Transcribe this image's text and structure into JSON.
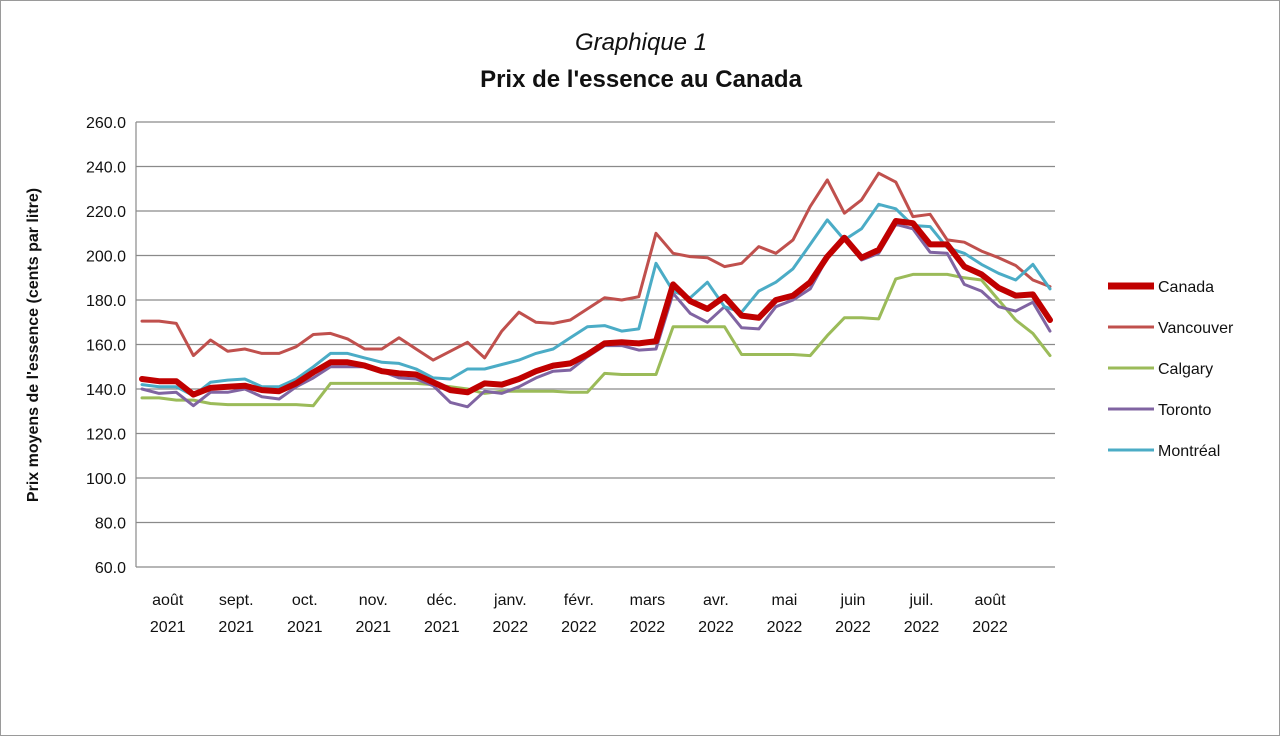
{
  "chart_data": {
    "type": "line",
    "title": "Prix de l'essence au Canada",
    "subtitle": "Graphique 1",
    "xlabel": "",
    "ylabel": "Prix moyens de l'essence (cents par litre)",
    "ylim": [
      60,
      260
    ],
    "yticks": [
      "260.0",
      "240.0",
      "220.0",
      "200.0",
      "180.0",
      "160.0",
      "140.0",
      "120.0",
      "100.0",
      "80.0",
      "60.0"
    ],
    "xtick_labels": [
      {
        "month": "août",
        "year": "2021"
      },
      {
        "month": "sept.",
        "year": "2021"
      },
      {
        "month": "oct.",
        "year": "2021"
      },
      {
        "month": "nov.",
        "year": "2021"
      },
      {
        "month": "déc.",
        "year": "2021"
      },
      {
        "month": "janv.",
        "year": "2022"
      },
      {
        "month": "févr.",
        "year": "2022"
      },
      {
        "month": "mars",
        "year": "2022"
      },
      {
        "month": "avr.",
        "year": "2022"
      },
      {
        "month": "mai",
        "year": "2022"
      },
      {
        "month": "juin",
        "year": "2022"
      },
      {
        "month": "juil.",
        "year": "2022"
      },
      {
        "month": "août",
        "year": "2022"
      }
    ],
    "points_per_month": 4,
    "grid": true,
    "legend": "right",
    "series": [
      {
        "name": "Vancouver",
        "color": "#c0504d",
        "values": [
          170.5,
          170.5,
          169.5,
          155,
          162,
          157,
          158,
          156,
          156,
          159,
          164.5,
          165,
          162.5,
          158,
          158,
          163,
          158,
          153,
          157,
          161,
          154,
          166,
          174.5,
          170,
          169.5,
          171,
          176,
          181,
          180,
          181.5,
          210,
          201,
          199.5,
          199,
          195,
          196.5,
          204,
          201,
          207,
          222,
          234,
          219,
          225,
          237,
          233,
          217.5,
          218.5,
          207,
          206,
          202,
          199,
          195.5,
          189,
          186
        ]
      },
      {
        "name": "Calgary",
        "color": "#9bbb59",
        "values": [
          136,
          136,
          135,
          135,
          133.5,
          133,
          133,
          133,
          133,
          133,
          132.5,
          142.5,
          142.5,
          142.5,
          142.5,
          142.5,
          142.5,
          142,
          141,
          140,
          138,
          139,
          139,
          139,
          139,
          138.5,
          138.5,
          147,
          146.5,
          146.5,
          146.5,
          168,
          168,
          168,
          168,
          155.5,
          155.5,
          155.5,
          155.5,
          155,
          164,
          172,
          172,
          171.5,
          189.5,
          191.5,
          191.5,
          191.5,
          190,
          189,
          180,
          171,
          165,
          155
        ]
      },
      {
        "name": "Toronto",
        "color": "#8064a2",
        "values": [
          140,
          138,
          138.5,
          132.5,
          138.5,
          138.5,
          140,
          136.5,
          135.5,
          141,
          145,
          150,
          150,
          150,
          148,
          145,
          144.5,
          141.5,
          134,
          132,
          139,
          138,
          141,
          145,
          148,
          148.5,
          154.5,
          159.5,
          159.5,
          157.5,
          158,
          183,
          174,
          170,
          177,
          167.5,
          167,
          177,
          180,
          185,
          199,
          208,
          198,
          201,
          214,
          212,
          201.5,
          201,
          187,
          184,
          177,
          175,
          179,
          166
        ]
      },
      {
        "name": "Montréal",
        "color": "#4bacc6",
        "values": [
          142,
          141,
          141,
          137,
          143,
          144,
          144.5,
          141,
          141,
          144.5,
          150,
          156,
          156,
          154,
          152,
          151.5,
          149,
          145,
          144.5,
          149,
          149,
          151,
          153,
          156,
          158,
          163,
          168,
          168.5,
          166,
          167,
          196.5,
          184,
          181,
          188,
          177,
          174.5,
          184,
          188,
          194,
          205,
          216,
          207,
          212,
          223,
          221,
          213.5,
          213,
          203.5,
          201,
          196,
          192,
          189,
          196,
          185
        ]
      },
      {
        "name": "Canada",
        "color": "#c00000",
        "values": [
          144.5,
          143.5,
          143.5,
          137.5,
          140.5,
          141,
          141.5,
          139.5,
          139,
          142.5,
          147.5,
          152,
          152,
          150.5,
          148,
          147,
          146.5,
          143,
          139.5,
          138.5,
          142.5,
          142,
          144.5,
          148,
          150.5,
          151.5,
          155.5,
          160.5,
          161,
          160.5,
          161.5,
          187,
          179.5,
          176,
          181.5,
          173,
          172,
          180,
          182,
          188,
          199.5,
          208,
          199,
          202.5,
          215.5,
          214.5,
          205,
          205,
          195,
          191.5,
          185.5,
          182,
          182.5,
          171
        ]
      }
    ]
  }
}
